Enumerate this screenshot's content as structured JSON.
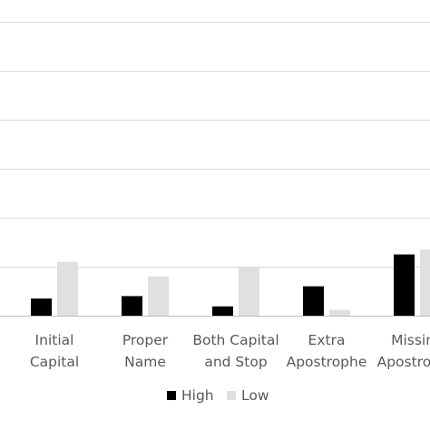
{
  "chart_data": {
    "type": "bar",
    "categories": [
      [
        "Initial",
        "Capital"
      ],
      [
        "Proper",
        "Name"
      ],
      [
        "Both Capital",
        "and Stop"
      ],
      [
        "Extra",
        "Apostrophe"
      ],
      [
        "Missing",
        "Apostrophe"
      ]
    ],
    "series": [
      {
        "name": "High",
        "color": "#000000",
        "values": [
          3.5,
          4.0,
          1.9,
          6.0,
          12.5
        ]
      },
      {
        "name": "Low",
        "color": "#e0e0e0",
        "values": [
          11.0,
          8.0,
          9.8,
          1.2,
          13.5
        ]
      }
    ],
    "ylim": [
      0,
      60
    ],
    "grid": true,
    "legend_position": "bottom"
  }
}
